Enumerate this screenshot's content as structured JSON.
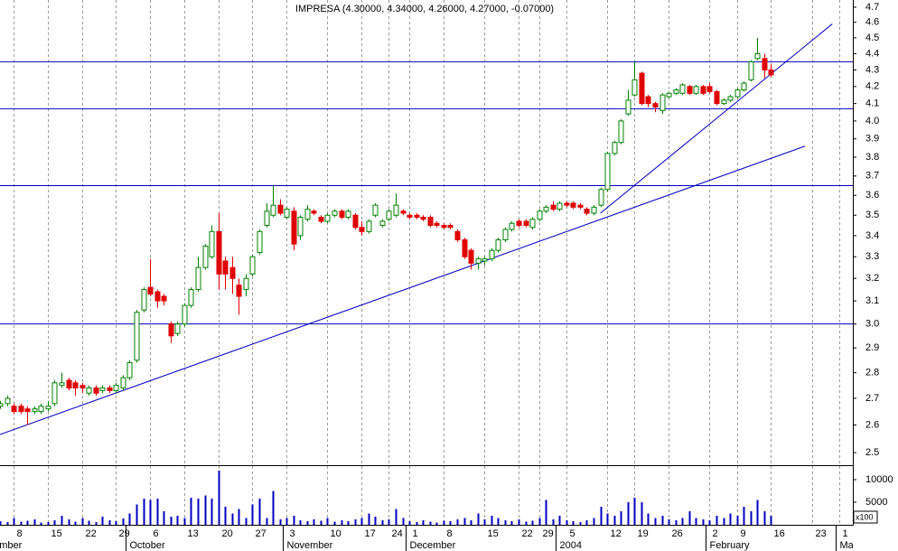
{
  "chart_data": {
    "type": "candlestick",
    "title": "IMPRESA (4.30000, 4.34000, 4.26000, 4.27000, -0.07000)",
    "log_scale": true,
    "grid": true,
    "up_color": "#008000",
    "down_color": "#e00000",
    "line_color": "#0000c0",
    "volume_color": "#0000c0",
    "x": [
      -2,
      -1,
      0,
      1,
      2,
      3,
      4,
      5,
      6,
      7,
      8,
      9,
      10,
      11,
      12,
      13,
      14,
      15,
      16,
      17,
      18,
      19,
      20,
      21,
      22,
      23,
      24,
      25,
      26,
      27,
      28,
      29,
      30,
      31,
      32,
      33,
      34,
      35,
      36,
      37,
      38,
      39,
      40,
      41,
      42,
      43,
      44,
      45,
      46,
      47,
      48,
      49,
      50,
      51,
      52,
      53,
      54,
      55,
      56,
      57,
      58,
      59,
      60,
      61,
      62,
      63,
      64,
      65,
      66,
      67,
      68,
      69,
      70,
      71,
      72,
      73,
      74,
      75,
      76,
      77,
      78,
      79,
      80,
      81,
      82,
      83,
      84,
      85,
      86,
      87,
      88,
      89,
      90,
      91,
      92,
      93,
      94,
      95,
      96,
      97,
      98,
      99,
      100,
      101,
      102,
      103,
      104,
      105,
      106,
      107,
      108,
      109,
      110,
      111
    ],
    "open": [
      2.67,
      2.68,
      2.67,
      2.67,
      2.66,
      2.65,
      2.65,
      2.66,
      2.68,
      2.75,
      2.77,
      2.76,
      2.75,
      2.72,
      2.74,
      2.73,
      2.74,
      2.73,
      2.74,
      2.78,
      2.85,
      3.06,
      3.16,
      3.14,
      3.12,
      3.0,
      2.96,
      3.0,
      3.08,
      3.15,
      3.25,
      3.3,
      3.42,
      3.28,
      3.25,
      3.17,
      3.15,
      3.22,
      3.32,
      3.45,
      3.5,
      3.55,
      3.49,
      3.52,
      3.4,
      3.48,
      3.52,
      3.49,
      3.47,
      3.5,
      3.52,
      3.49,
      3.5,
      3.44,
      3.42,
      3.5,
      3.45,
      3.48,
      3.5,
      3.52,
      3.5,
      3.5,
      3.49,
      3.49,
      3.46,
      3.45,
      3.45,
      3.42,
      3.38,
      3.33,
      3.27,
      3.28,
      3.29,
      3.33,
      3.38,
      3.43,
      3.47,
      3.47,
      3.44,
      3.48,
      3.52,
      3.55,
      3.53,
      3.56,
      3.56,
      3.55,
      3.53,
      3.51,
      3.55,
      3.63,
      3.82,
      3.88,
      4.04,
      4.15,
      4.28,
      4.14,
      4.1,
      4.06,
      4.14,
      4.16,
      4.16,
      4.2,
      4.16,
      4.2,
      4.2,
      4.17,
      4.1,
      4.12,
      4.14,
      4.18,
      4.24,
      4.37,
      4.37,
      4.3
    ],
    "high": [
      2.69,
      2.71,
      2.68,
      2.68,
      2.67,
      2.67,
      2.68,
      2.69,
      2.77,
      2.8,
      2.78,
      2.77,
      2.76,
      2.75,
      2.75,
      2.75,
      2.75,
      2.76,
      2.79,
      2.85,
      3.06,
      3.16,
      3.29,
      3.15,
      3.13,
      3.01,
      3.01,
      3.09,
      3.16,
      3.3,
      3.36,
      3.45,
      3.51,
      3.3,
      3.3,
      3.2,
      3.22,
      3.31,
      3.43,
      3.56,
      3.65,
      3.58,
      3.54,
      3.54,
      3.5,
      3.55,
      3.53,
      3.5,
      3.51,
      3.53,
      3.53,
      3.53,
      3.51,
      3.47,
      3.48,
      3.56,
      3.48,
      3.53,
      3.61,
      3.53,
      3.51,
      3.51,
      3.5,
      3.5,
      3.47,
      3.46,
      3.46,
      3.43,
      3.39,
      3.34,
      3.3,
      3.3,
      3.34,
      3.39,
      3.44,
      3.47,
      3.48,
      3.48,
      3.49,
      3.53,
      3.55,
      3.57,
      3.57,
      3.57,
      3.57,
      3.56,
      3.54,
      3.55,
      3.64,
      3.83,
      3.89,
      4.01,
      4.18,
      4.35,
      4.29,
      4.15,
      4.11,
      4.16,
      4.17,
      4.19,
      4.22,
      4.21,
      4.21,
      4.21,
      4.22,
      4.18,
      4.13,
      4.15,
      4.19,
      4.23,
      4.36,
      4.5,
      4.4,
      4.34
    ],
    "low": [
      2.66,
      2.67,
      2.64,
      2.64,
      2.6,
      2.64,
      2.64,
      2.65,
      2.67,
      2.74,
      2.73,
      2.71,
      2.72,
      2.71,
      2.71,
      2.72,
      2.72,
      2.72,
      2.73,
      2.77,
      2.84,
      3.05,
      3.12,
      3.07,
      3.08,
      2.92,
      2.95,
      2.99,
      3.07,
      3.14,
      3.24,
      3.29,
      3.15,
      3.15,
      3.13,
      3.04,
      3.12,
      3.21,
      3.31,
      3.44,
      3.49,
      3.5,
      3.48,
      3.33,
      3.38,
      3.47,
      3.5,
      3.46,
      3.46,
      3.49,
      3.48,
      3.48,
      3.43,
      3.4,
      3.41,
      3.49,
      3.44,
      3.47,
      3.49,
      3.5,
      3.48,
      3.48,
      3.47,
      3.44,
      3.44,
      3.43,
      3.43,
      3.37,
      3.29,
      3.24,
      3.24,
      3.26,
      3.28,
      3.32,
      3.37,
      3.42,
      3.44,
      3.44,
      3.43,
      3.47,
      3.51,
      3.52,
      3.52,
      3.54,
      3.53,
      3.53,
      3.5,
      3.5,
      3.54,
      3.62,
      3.81,
      3.87,
      4.03,
      4.14,
      4.09,
      4.08,
      4.05,
      4.04,
      4.13,
      4.15,
      4.15,
      4.15,
      4.15,
      4.15,
      4.16,
      4.09,
      4.09,
      4.11,
      4.13,
      4.17,
      4.23,
      4.36,
      4.25,
      4.26
    ],
    "close": [
      2.68,
      2.7,
      2.65,
      2.65,
      2.65,
      2.66,
      2.67,
      2.67,
      2.76,
      2.76,
      2.74,
      2.74,
      2.74,
      2.74,
      2.72,
      2.74,
      2.73,
      2.75,
      2.78,
      2.84,
      3.05,
      3.15,
      3.13,
      3.1,
      3.1,
      2.95,
      3.0,
      3.08,
      3.15,
      3.25,
      3.35,
      3.42,
      3.22,
      3.22,
      3.2,
      3.12,
      3.2,
      3.3,
      3.42,
      3.52,
      3.55,
      3.51,
      3.53,
      3.36,
      3.49,
      3.53,
      3.51,
      3.47,
      3.5,
      3.52,
      3.49,
      3.52,
      3.44,
      3.42,
      3.47,
      3.55,
      3.47,
      3.52,
      3.55,
      3.51,
      3.49,
      3.49,
      3.48,
      3.45,
      3.45,
      3.44,
      3.44,
      3.38,
      3.3,
      3.27,
      3.29,
      3.29,
      3.33,
      3.38,
      3.43,
      3.46,
      3.45,
      3.45,
      3.48,
      3.52,
      3.54,
      3.53,
      3.56,
      3.55,
      3.54,
      3.54,
      3.51,
      3.54,
      3.63,
      3.82,
      3.88,
      4.0,
      4.12,
      4.24,
      4.1,
      4.1,
      4.08,
      4.15,
      4.16,
      4.18,
      4.21,
      4.16,
      4.2,
      4.16,
      4.17,
      4.1,
      4.12,
      4.14,
      4.18,
      4.22,
      4.35,
      4.4,
      4.3,
      4.27
    ],
    "volume": [
      800,
      600,
      1500,
      700,
      900,
      1200,
      500,
      600,
      1000,
      2000,
      1200,
      700,
      1500,
      900,
      600,
      1800,
      1000,
      800,
      1400,
      2500,
      4500,
      5800,
      5500,
      5800,
      3000,
      1800,
      2000,
      1500,
      6000,
      5800,
      6500,
      5800,
      12000,
      4000,
      2500,
      3500,
      1500,
      4500,
      5800,
      1500,
      7500,
      1200,
      1500,
      2000,
      1000,
      800,
      1200,
      900,
      1500,
      700,
      1000,
      800,
      1200,
      1500,
      2500,
      1800,
      1000,
      1200,
      3500,
      1500,
      800,
      600,
      1000,
      700,
      500,
      900,
      800,
      1200,
      1500,
      1000,
      2500,
      1200,
      2000,
      1500,
      1000,
      800,
      1200,
      700,
      900,
      1500,
      5500,
      1200,
      2000,
      1000,
      800,
      600,
      1000,
      1500,
      4000,
      2500,
      2000,
      3000,
      5000,
      6000,
      5000,
      2500,
      1500,
      2000,
      1200,
      1000,
      1500,
      3000,
      1500,
      1200,
      1000,
      2000,
      1500,
      2500,
      2000,
      4000,
      3000,
      5500,
      3000,
      2000
    ],
    "xlim": [
      -2,
      123
    ],
    "xticks": [
      {
        "value": 0,
        "label": "8"
      },
      {
        "value": 5,
        "label": "15"
      },
      {
        "value": 10,
        "label": "22"
      },
      {
        "value": 15,
        "label": "29"
      },
      {
        "value": 20,
        "label": "6"
      },
      {
        "value": 25,
        "label": "13"
      },
      {
        "value": 30,
        "label": "20"
      },
      {
        "value": 35,
        "label": "27"
      },
      {
        "value": 40,
        "label": "3"
      },
      {
        "value": 46,
        "label": "10"
      },
      {
        "value": 51,
        "label": "17"
      },
      {
        "value": 55,
        "label": "24"
      },
      {
        "value": 58,
        "label": "1"
      },
      {
        "value": 63,
        "label": "8"
      },
      {
        "value": 69,
        "label": "15"
      },
      {
        "value": 74,
        "label": "22"
      },
      {
        "value": 77,
        "label": "29"
      },
      {
        "value": 81,
        "label": "5"
      },
      {
        "value": 87,
        "label": "12"
      },
      {
        "value": 91,
        "label": "19"
      },
      {
        "value": 96,
        "label": "26"
      },
      {
        "value": 102,
        "label": "2"
      },
      {
        "value": 106,
        "label": "9"
      },
      {
        "value": 111,
        "label": "16"
      },
      {
        "value": 117,
        "label": "23"
      },
      {
        "value": 121,
        "label": "1"
      }
    ],
    "months": [
      {
        "value": -6,
        "label": "September"
      },
      {
        "value": 17,
        "label": "October"
      },
      {
        "value": 40,
        "label": "November"
      },
      {
        "value": 58,
        "label": "December"
      },
      {
        "value": 80,
        "label": "2004"
      },
      {
        "value": 102,
        "label": "February"
      },
      {
        "value": 121,
        "label": "March"
      }
    ],
    "ylim": [
      2.456,
      4.748
    ],
    "yticks": [
      2.5,
      2.6,
      2.7,
      2.8,
      2.9,
      {
        "value": 3,
        "label": "3.0"
      },
      3.1,
      3.2,
      3.3,
      3.4,
      3.5,
      3.6,
      3.7,
      3.8,
      3.9,
      {
        "value": 4,
        "label": "4.0"
      },
      4.1,
      4.2,
      4.3,
      4.4,
      4.5,
      4.6,
      4.7
    ],
    "volume_ylim": [
      0,
      13000
    ],
    "volume_yticks": [
      5000,
      10000
    ],
    "volume_unit": "x100",
    "hlines": [
      4.35,
      4.07,
      3.65,
      3.0
    ],
    "trendlines": [
      {
        "x": [
          -2,
          116
        ],
        "y": [
          2.565,
          3.86
        ]
      },
      {
        "x": [
          86,
          120
        ],
        "y": [
          3.51,
          4.59
        ]
      }
    ]
  }
}
